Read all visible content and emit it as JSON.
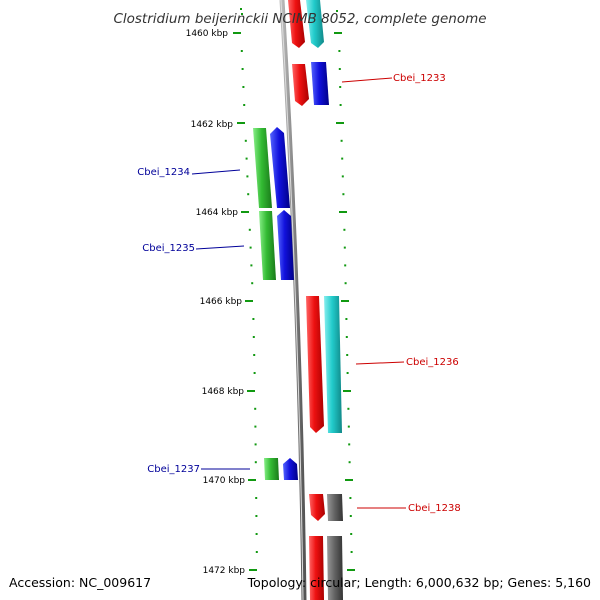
{
  "title": "Clostridium beijerinckii NCIMB 8052, complete genome",
  "footer": {
    "accession": "Accession: NC_009617",
    "summary": "Topology: circular; Length: 6,000,632 bp; Genes: 5,160"
  },
  "axis": {
    "unit": "kbp",
    "ticks": [
      {
        "kbp": 1460,
        "label": "1460 kbp"
      },
      {
        "kbp": 1462,
        "label": "1462 kbp"
      },
      {
        "kbp": 1464,
        "label": "1464 kbp"
      },
      {
        "kbp": 1466,
        "label": "1466 kbp"
      },
      {
        "kbp": 1468,
        "label": "1468 kbp"
      },
      {
        "kbp": 1470,
        "label": "1470 kbp"
      },
      {
        "kbp": 1472,
        "label": "1472 kbp"
      }
    ]
  },
  "gene_labels": [
    {
      "name": "Cbei_1233",
      "strand": "forward",
      "color": "#cc0000"
    },
    {
      "name": "Cbei_1234",
      "strand": "reverse",
      "color": "#000099"
    },
    {
      "name": "Cbei_1235",
      "strand": "reverse",
      "color": "#000099"
    },
    {
      "name": "Cbei_1236",
      "strand": "forward",
      "color": "#cc0000"
    },
    {
      "name": "Cbei_1237",
      "strand": "reverse",
      "color": "#000099"
    },
    {
      "name": "Cbei_1238",
      "strand": "forward",
      "color": "#cc0000"
    }
  ],
  "colors": {
    "backbone": "#888888",
    "forward_cds": "#ee1111",
    "reverse_cds": "#1111dd",
    "forward_feature_cyan": "#22cccc",
    "reverse_feature_green": "#33bb33",
    "feature_gray": "#666666",
    "tick": "#119911"
  }
}
